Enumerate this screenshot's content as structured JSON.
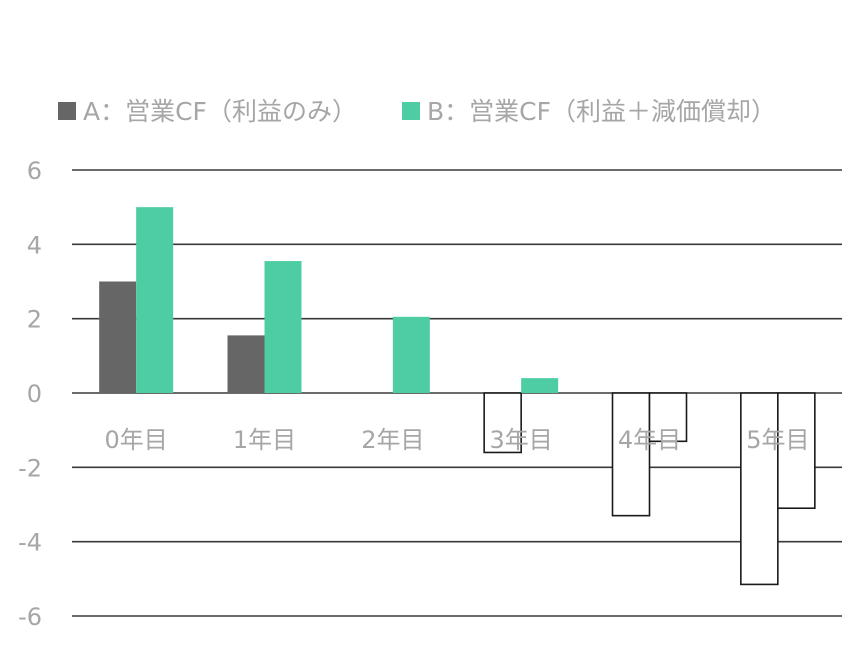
{
  "chart_data": {
    "type": "bar",
    "categories": [
      "0年目",
      "1年目",
      "2年目",
      "3年目",
      "4年目",
      "5年目"
    ],
    "series": [
      {
        "name": "A：営業CF（利益のみ）",
        "values": [
          3.0,
          1.55,
          0,
          -1.6,
          -3.3,
          -5.15
        ],
        "color_positive": "#666666"
      },
      {
        "name": "B：営業CF（利益＋減価償却）",
        "values": [
          5.0,
          3.55,
          2.05,
          0.4,
          -1.3,
          -3.1
        ],
        "color_positive": "#4ecda4"
      }
    ],
    "negative_fill": "#ffffff",
    "negative_stroke": "#1a1a1a",
    "ylim": [
      -6,
      6
    ],
    "yticks": [
      6,
      4,
      2,
      0,
      -2,
      -4,
      -6
    ],
    "ytick_labels": [
      "6",
      "4",
      "2",
      "0",
      "-2",
      "-4",
      "-6"
    ],
    "grid": true,
    "legend_position": "top"
  }
}
